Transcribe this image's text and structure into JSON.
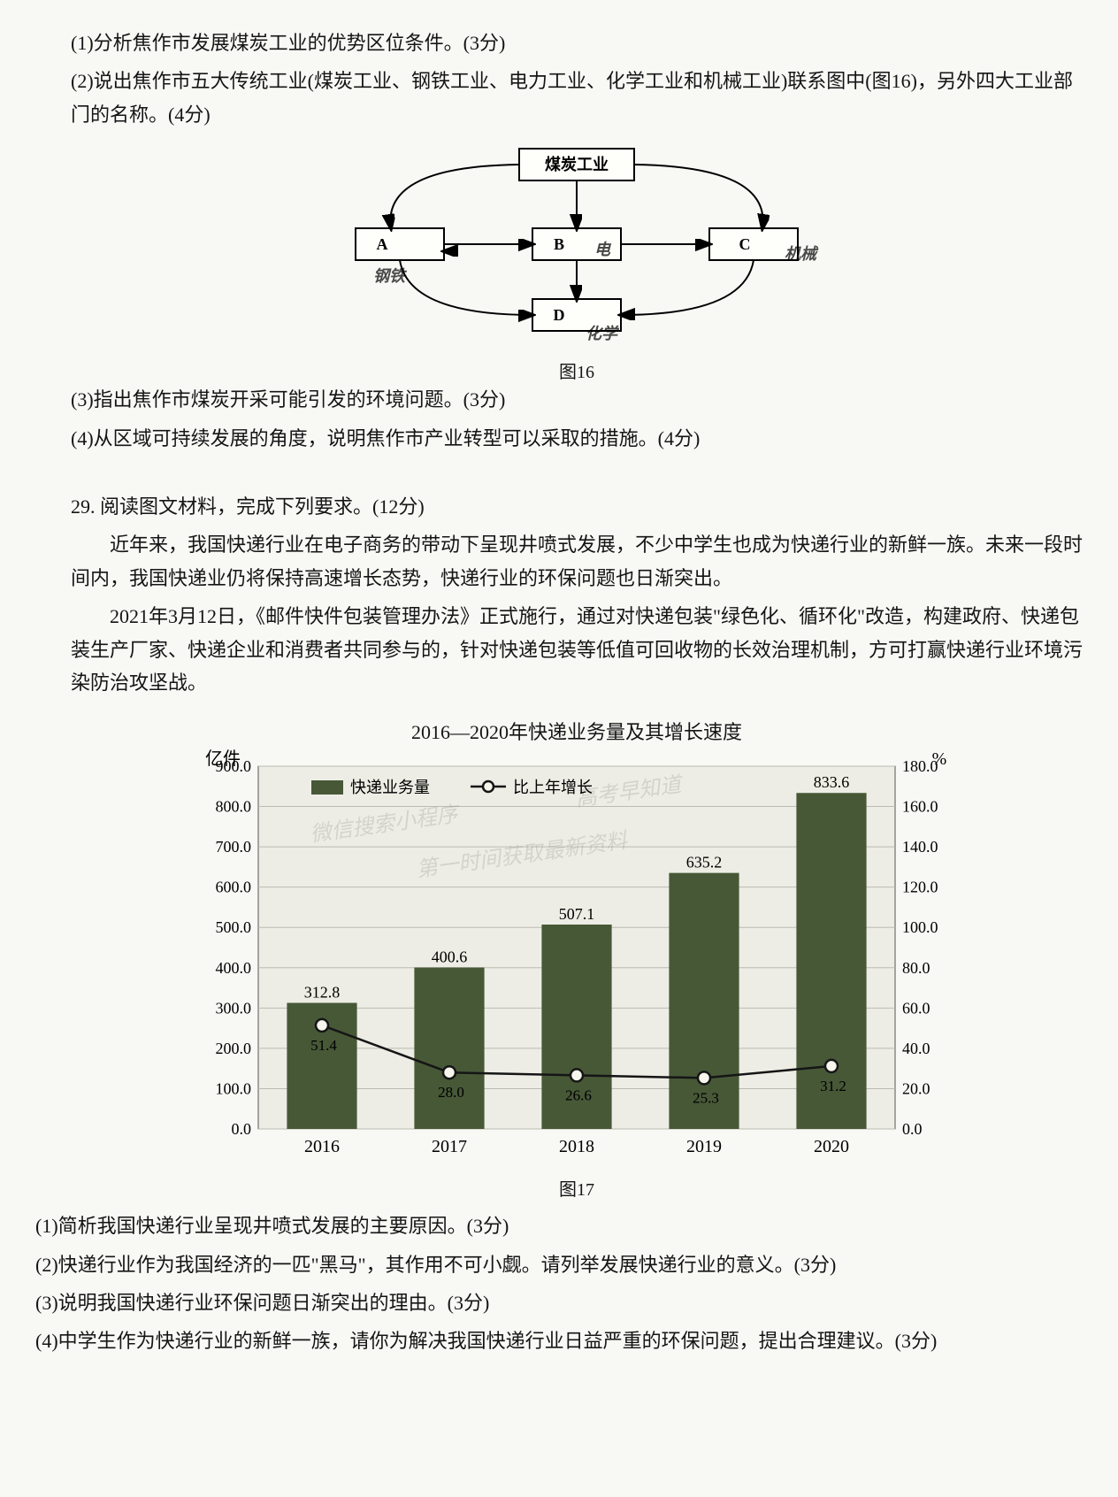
{
  "q28": {
    "sub1": "(1)分析焦作市发展煤炭工业的优势区位条件。(3分)",
    "sub2": "(2)说出焦作市五大传统工业(煤炭工业、钢铁工业、电力工业、化学工业和机械工业)联系图中(图16)，另外四大工业部门的名称。(4分)",
    "sub3": "(3)指出焦作市煤炭开采可能引发的环境问题。(3分)",
    "sub4": "(4)从区域可持续发展的角度，说明焦作市产业转型可以采取的措施。(4分)"
  },
  "diagram16": {
    "top": "煤炭工业",
    "A": "A",
    "B": "B",
    "C": "C",
    "D": "D",
    "caption": "图16",
    "hand_B": "电",
    "hand_A": "钢铁",
    "hand_C": "机械",
    "hand_D": "化学"
  },
  "q29": {
    "title": "29. 阅读图文材料，完成下列要求。(12分)",
    "p1": "近年来，我国快递行业在电子商务的带动下呈现井喷式发展，不少中学生也成为快递行业的新鲜一族。未来一段时间内，我国快递业仍将保持高速增长态势，快递行业的环保问题也日渐突出。",
    "p2": "2021年3月12日，《邮件快件包装管理办法》正式施行，通过对快递包装\"绿色化、循环化\"改造，构建政府、快递包装生产厂家、快递企业和消费者共同参与的，针对快递包装等低值可回收物的长效治理机制，方可打赢快递行业环境污染防治攻坚战。",
    "sub1": "(1)简析我国快递行业呈现井喷式发展的主要原因。(3分)",
    "sub2": "(2)快递行业作为我国经济的一匹\"黑马\"，其作用不可小觑。请列举发展快递行业的意义。(3分)",
    "sub3": "(3)说明我国快递行业环保问题日渐突出的理由。(3分)",
    "sub4": "(4)中学生作为快递行业的新鲜一族，请你为解决我国快递行业日益严重的环保问题，提出合理建议。(3分)"
  },
  "chart": {
    "title": "2016—2020年快递业务量及其增长速度",
    "y1_label": "亿件",
    "y2_label": "%",
    "legend_bar": "快递业务量",
    "legend_line": "比上年增长",
    "years": [
      "2016",
      "2017",
      "2018",
      "2019",
      "2020"
    ],
    "bar_values": [
      312.8,
      400.6,
      507.1,
      635.2,
      833.6
    ],
    "line_values": [
      51.4,
      28.0,
      26.6,
      25.3,
      31.2
    ],
    "bar_labels": [
      "312.8",
      "400.6",
      "507.1",
      "635.2",
      "833.6"
    ],
    "line_labels": [
      "51.4",
      "28.0",
      "26.6",
      "25.3",
      "31.2"
    ],
    "y1_ticks": [
      "0.0",
      "100.0",
      "200.0",
      "300.0",
      "400.0",
      "500.0",
      "600.0",
      "700.0",
      "800.0",
      "900.0"
    ],
    "y1_max": 900,
    "y2_ticks": [
      "0.0",
      "20.0",
      "40.0",
      "60.0",
      "80.0",
      "100.0",
      "120.0",
      "140.0",
      "160.0",
      "180.0"
    ],
    "y2_max": 180,
    "bar_color": "#4a5a3a",
    "plot_bg": "#e8e8e0",
    "grid_color": "#b8b8b0",
    "line_color": "#1a1a1a",
    "marker_fill": "#f0f0e8",
    "caption": "图17",
    "watermark": [
      "微信搜索小程序",
      "高考早知道",
      "第一时间获取最新资料"
    ]
  }
}
